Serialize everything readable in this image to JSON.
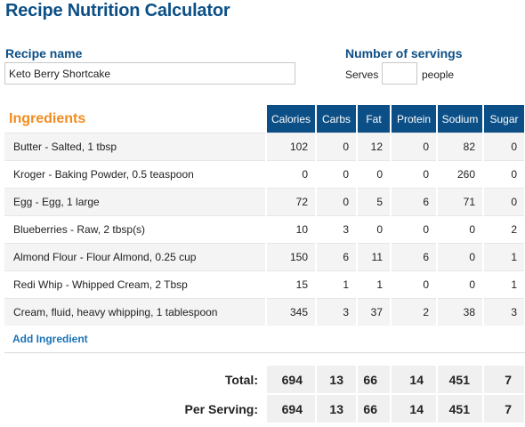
{
  "title": "Recipe Nutrition Calculator",
  "recipe": {
    "label": "Recipe name",
    "value": "Keto Berry Shortcake"
  },
  "servings": {
    "label": "Number of servings",
    "serves_text": "Serves",
    "people_text": "people",
    "value": ""
  },
  "table": {
    "ingredients_heading": "Ingredients",
    "columns": [
      "Calories",
      "Carbs",
      "Fat",
      "Protein",
      "Sodium",
      "Sugar"
    ],
    "rows": [
      {
        "name": "Butter - Salted, 1 tbsp",
        "values": [
          "102",
          "0",
          "12",
          "0",
          "82",
          "0"
        ]
      },
      {
        "name": "Kroger - Baking Powder, 0.5 teaspoon",
        "values": [
          "0",
          "0",
          "0",
          "0",
          "260",
          "0"
        ]
      },
      {
        "name": "Egg - Egg, 1 large",
        "values": [
          "72",
          "0",
          "5",
          "6",
          "71",
          "0"
        ]
      },
      {
        "name": "Blueberries - Raw, 2 tbsp(s)",
        "values": [
          "10",
          "3",
          "0",
          "0",
          "0",
          "2"
        ]
      },
      {
        "name": "Almond Flour - Flour Almond, 0.25 cup",
        "values": [
          "150",
          "6",
          "11",
          "6",
          "0",
          "1"
        ]
      },
      {
        "name": "Redi Whip - Whipped Cream, 2 Tbsp",
        "values": [
          "15",
          "1",
          "1",
          "0",
          "0",
          "1"
        ]
      },
      {
        "name": "Cream, fluid, heavy whipping, 1 tablespoon",
        "values": [
          "345",
          "3",
          "37",
          "2",
          "38",
          "3"
        ]
      }
    ]
  },
  "add_ingredient_label": "Add Ingredient",
  "totals": {
    "total_label": "Total:",
    "total_values": [
      "694",
      "13",
      "66",
      "14",
      "451",
      "7"
    ],
    "per_serving_label": "Per Serving:",
    "per_serving_values": [
      "694",
      "13",
      "66",
      "14",
      "451",
      "7"
    ]
  },
  "colors": {
    "brand_blue": "#0c4f86",
    "heading_orange": "#f28c1e",
    "link_blue": "#1a73b8"
  }
}
